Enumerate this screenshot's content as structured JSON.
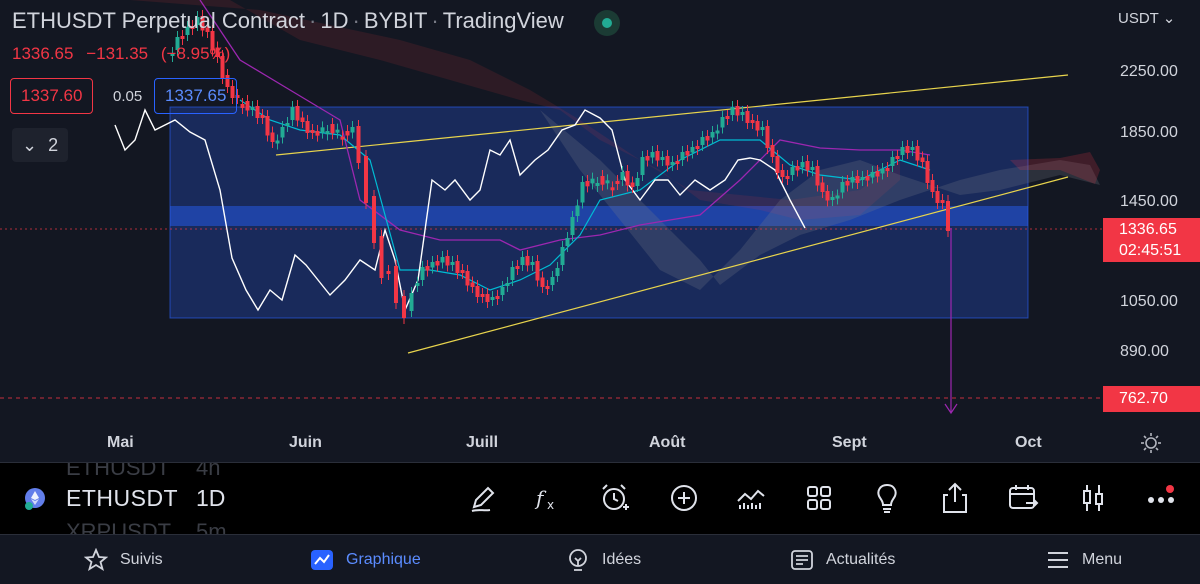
{
  "header": {
    "symbol_name": "ETHUSDT Perpetual Contract",
    "timeframe": "1D",
    "exchange": "BYBIT",
    "source": "TradingView",
    "last_price": "1336.65",
    "change": "−131.35",
    "change_pct": "(−8.95%)",
    "sell_price": "1337.60",
    "spread": "0.05",
    "buy_price": "1337.65",
    "collapse_count": "2",
    "status_color": "#22ab94"
  },
  "price_scale": {
    "currency": "USDT",
    "ticks": [
      "2250.00",
      "1850.00",
      "1450.00",
      "1050.00",
      "890.00"
    ],
    "last_price_tag": "1336.65",
    "countdown": "02:45:51",
    "target_tag": "762.70"
  },
  "time_scale": {
    "ticks": [
      "Mai",
      "Juin",
      "Juill",
      "Août",
      "Sept",
      "Oct"
    ]
  },
  "toolbar": {
    "ghost_above_symbol": "ETHUSDT",
    "ghost_above_interval": "4h",
    "ghost_below_symbol": "XRPUSDT",
    "ghost_below_interval": "5m",
    "symbol": "ETHUSDT",
    "interval": "1D",
    "icons": [
      "drawing-pen-icon",
      "indicators-fx-icon",
      "alert-clock-icon",
      "add-circle-icon",
      "compare-chart-icon",
      "layout-grid-icon",
      "ideas-bulb-icon",
      "share-icon",
      "replay-calendar-icon",
      "chart-type-candles-icon",
      "more-dots-icon"
    ]
  },
  "bottom_nav": {
    "items": [
      {
        "label": "Suivis",
        "icon": "star-icon"
      },
      {
        "label": "Graphique",
        "icon": "chart-icon"
      },
      {
        "label": "Idées",
        "icon": "bulb-icon"
      },
      {
        "label": "Actualités",
        "icon": "news-icon"
      },
      {
        "label": "Menu",
        "icon": "hamburger-icon"
      }
    ],
    "active": "Graphique"
  },
  "colors": {
    "up": "#22ab94",
    "down": "#f23645",
    "accent": "#2962ff",
    "background": "#131722",
    "trendline": "#e8d44d",
    "ichimoku_base": "#9c27b0"
  }
}
